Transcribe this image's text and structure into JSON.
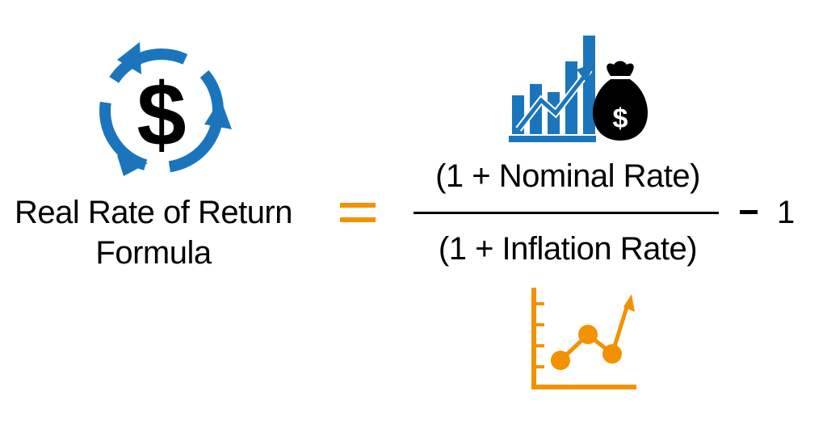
{
  "formula": {
    "lhs_line1": "Real Rate of Return",
    "lhs_line2": "Formula",
    "numerator": "(1 + Nominal Rate)",
    "denominator": "(1 + Inflation Rate)",
    "constant": "1"
  },
  "colors": {
    "blue": "#1b75bc",
    "orange": "#f39200",
    "black": "#000000"
  },
  "icons": {
    "cycle": "dollar-cycle-icon",
    "growth": "bar-chart-money-bag-icon",
    "trend": "line-chart-icon"
  }
}
